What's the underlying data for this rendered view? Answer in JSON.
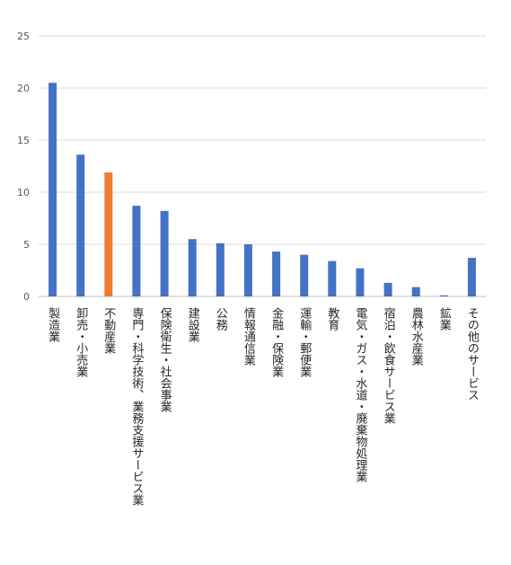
{
  "chart_data": {
    "type": "bar",
    "title": "",
    "xlabel": "",
    "ylabel": "",
    "ylim": [
      0,
      25
    ],
    "yticks": [
      0,
      5,
      10,
      15,
      20,
      25
    ],
    "grid": true,
    "legend": "none",
    "categories": [
      "製造業",
      "卸売・小売業",
      "不動産業",
      "専門・科学技術、業務支援サービス業",
      "保険衛生・社会事業",
      "建設業",
      "公務",
      "情報通信業",
      "金融・保険業",
      "運輸・郵便業",
      "教育",
      "電気・ガス・水道・廃棄物処理業",
      "宿泊・飲食サービス業",
      "農林水産業",
      "鉱業",
      "その他のサービス"
    ],
    "values": [
      20.5,
      13.6,
      11.9,
      8.7,
      8.2,
      5.5,
      5.1,
      5.0,
      4.3,
      4.0,
      3.4,
      2.7,
      1.3,
      0.9,
      0.1,
      3.7
    ],
    "colors": {
      "default": "#4472c4",
      "highlight": "#ed7d31",
      "grid": "#d9d9d9",
      "axis": "#bfbfbf"
    },
    "highlight_index": 2
  }
}
